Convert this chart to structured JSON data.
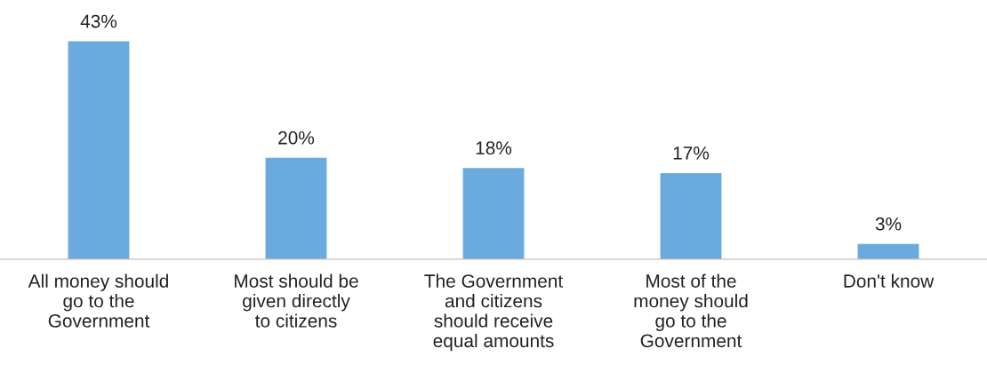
{
  "chart_data": {
    "type": "bar",
    "categories": [
      "All money should\ngo to the\nGovernment",
      "Most should be\ngiven directly\nto citizens",
      "The Government\nand citizens\nshould receive\nequal amounts",
      "Most of the\nmoney should\ngo to the\nGovernment",
      "Don't know"
    ],
    "values": [
      43,
      20,
      18,
      17,
      3
    ],
    "value_labels": [
      "43%",
      "20%",
      "18%",
      "17%",
      "3%"
    ],
    "color": "#6aaade",
    "grid": false,
    "legend": false
  }
}
